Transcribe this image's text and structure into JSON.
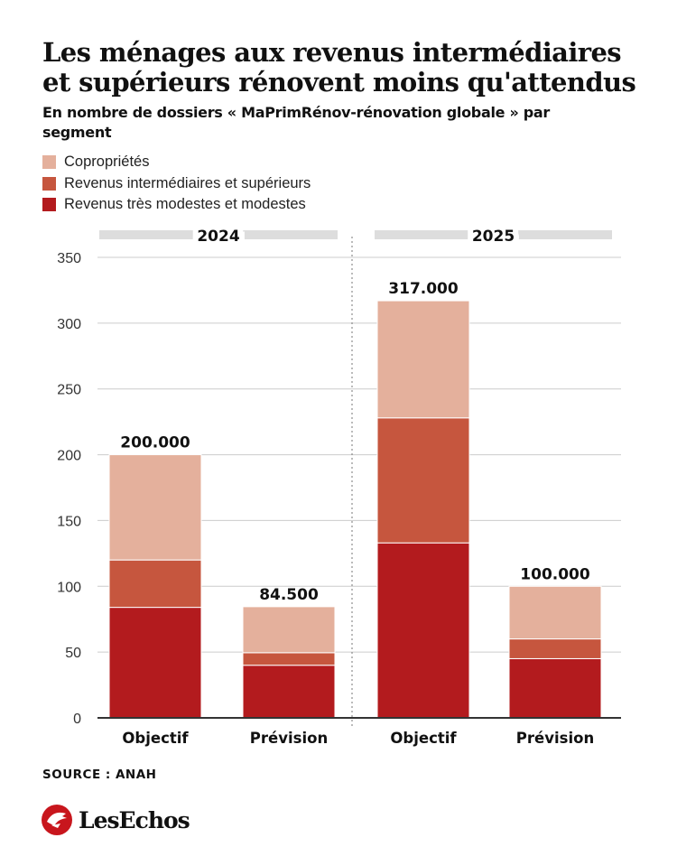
{
  "title": "Les ménages aux revenus intermédiaires et supérieurs rénovent moins qu'attendus",
  "subtitle": "En nombre de dossiers « MaPrimRénov-rénovation globale » par segment",
  "legend": [
    {
      "label": "Copropriétés",
      "color": "#e4b09c"
    },
    {
      "label": "Revenus intermédiaires et supérieurs",
      "color": "#c6563e"
    },
    {
      "label": "Revenus très modestes et modestes",
      "color": "#b31b1e"
    }
  ],
  "source": "SOURCE : ANAH",
  "logo": {
    "wordmark": "LesEchos",
    "icon": "les-echos-logo-icon"
  },
  "chart_data": {
    "type": "bar",
    "stacked": true,
    "groups": [
      "2024",
      "2025"
    ],
    "categories": [
      "Objectif",
      "Prévision",
      "Objectif",
      "Prévision"
    ],
    "category_groups": [
      "2024",
      "2024",
      "2025",
      "2025"
    ],
    "series": [
      {
        "name": "Revenus très modestes et modestes",
        "color": "#b31b1e",
        "values": [
          84,
          40,
          133,
          45
        ]
      },
      {
        "name": "Revenus intermédiaires et supérieurs",
        "color": "#c6563e",
        "values": [
          36,
          9.5,
          95,
          15
        ]
      },
      {
        "name": "Copropriétés",
        "color": "#e4b09c",
        "values": [
          80,
          35,
          89,
          40
        ]
      }
    ],
    "totals": [
      200,
      84.5,
      317,
      100
    ],
    "total_labels": [
      "200.000",
      "84.500",
      "317.000",
      "100.000"
    ],
    "ylim": [
      0,
      350
    ],
    "yticks": [
      0,
      50,
      100,
      150,
      200,
      250,
      300,
      350
    ],
    "grid": true
  }
}
